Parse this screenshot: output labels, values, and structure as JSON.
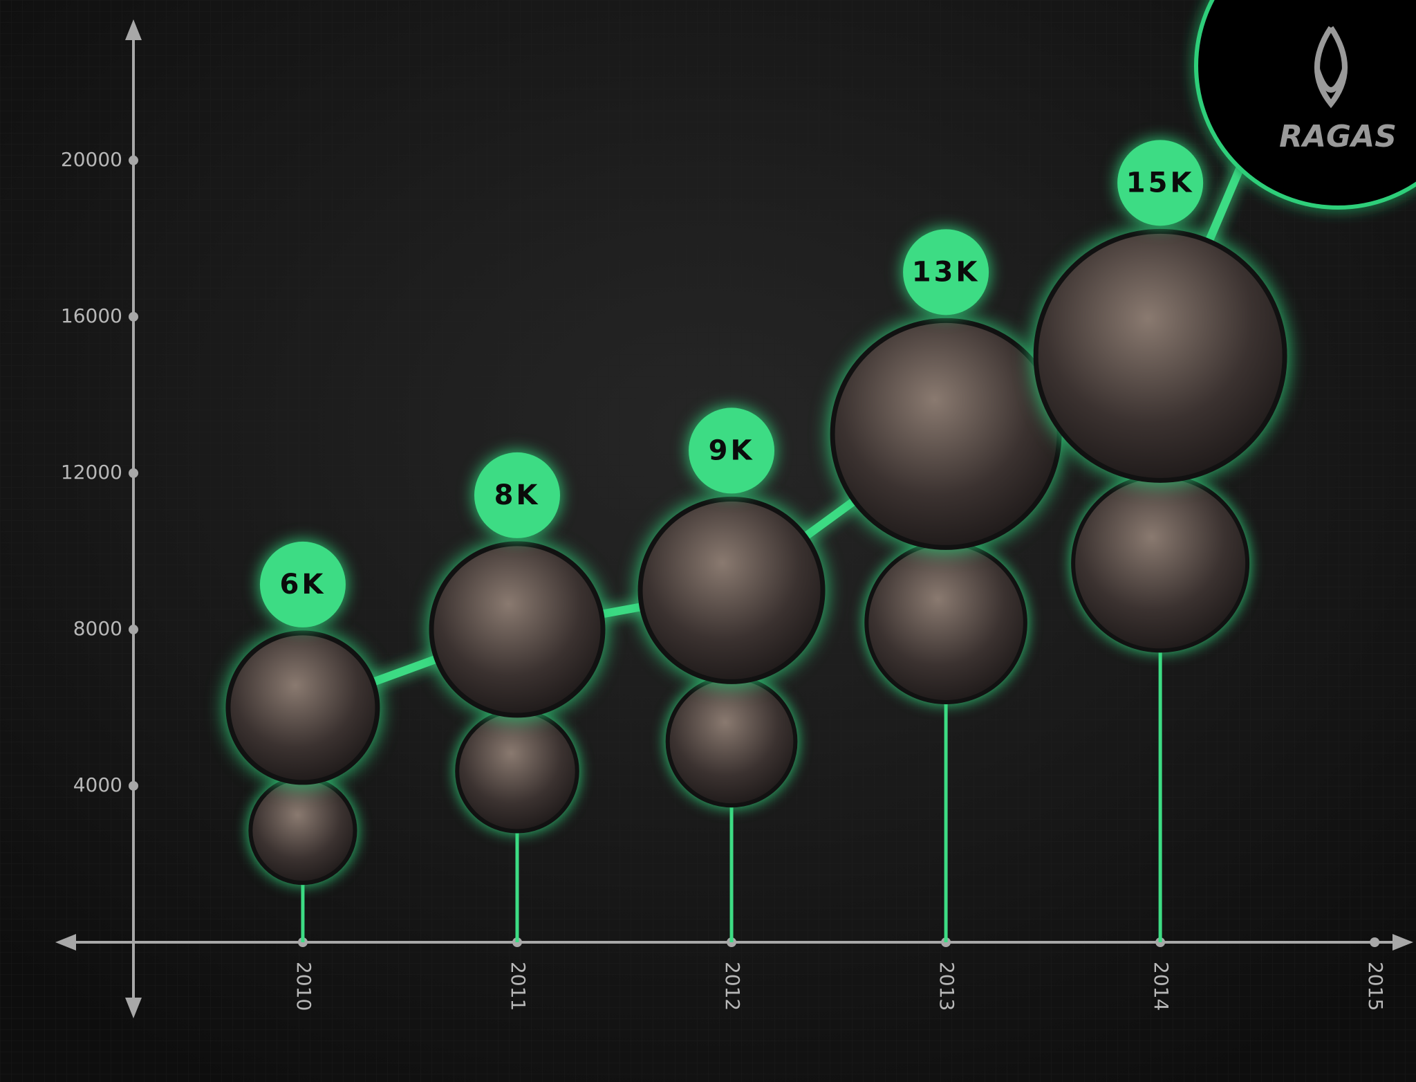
{
  "chart_data": {
    "type": "line",
    "x": [
      2010,
      2011,
      2012,
      2013,
      2014
    ],
    "values": [
      6000,
      8000,
      9000,
      13000,
      15000
    ],
    "value_labels": [
      "6K",
      "8K",
      "9K",
      "13K",
      "15K"
    ],
    "color": "#3ddc84",
    "xlim": [
      2009.21,
      2015.18
    ],
    "xticks": [
      2010,
      2011,
      2012,
      2013,
      2014,
      2015
    ],
    "ylim": [
      0,
      23500
    ],
    "yticks": [
      4000,
      8000,
      12000,
      16000,
      20000
    ],
    "grid": false,
    "annotations": [
      "RAGAS"
    ]
  }
}
